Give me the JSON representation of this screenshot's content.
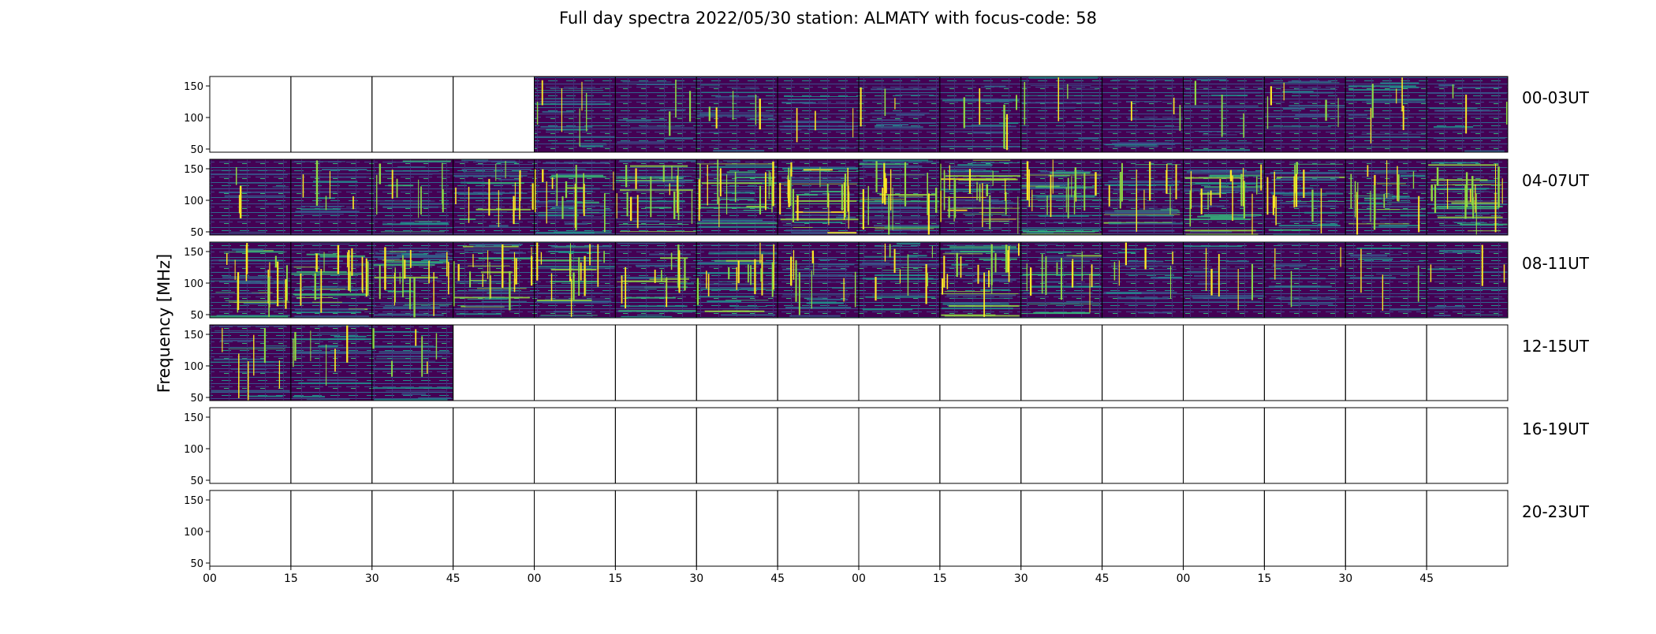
{
  "chart_data": {
    "type": "heatmap",
    "title": "Full day spectra 2022/05/30 station: ALMATY with focus-code: 58",
    "ylabel": "Frequency [MHz]",
    "xlabel": "",
    "ylim": [
      45,
      165
    ],
    "y_ticks": [
      "150",
      "100",
      "50"
    ],
    "y_tick_values": [
      150,
      100,
      50
    ],
    "x_ticks": [
      "00",
      "15",
      "30",
      "45",
      "00",
      "15",
      "30",
      "45",
      "00",
      "15",
      "30",
      "45",
      "00",
      "15",
      "30",
      "45"
    ],
    "colormap": "viridis",
    "panels_per_row": 16,
    "rows": [
      {
        "label": "00-03UT",
        "filled": [
          false,
          false,
          false,
          false,
          true,
          true,
          true,
          true,
          true,
          true,
          true,
          true,
          true,
          true,
          true,
          true
        ],
        "activity": [
          0,
          0,
          0,
          0,
          0.2,
          0.1,
          0.15,
          0.1,
          0.1,
          0.15,
          0.1,
          0.1,
          0.1,
          0.15,
          0.15,
          0.1
        ]
      },
      {
        "label": "04-07UT",
        "filled": [
          true,
          true,
          true,
          true,
          true,
          true,
          true,
          true,
          true,
          true,
          true,
          true,
          true,
          true,
          true,
          true
        ],
        "activity": [
          0.1,
          0.15,
          0.25,
          0.35,
          0.45,
          0.5,
          0.45,
          0.6,
          0.5,
          0.55,
          0.5,
          0.35,
          0.45,
          0.35,
          0.45,
          0.5
        ]
      },
      {
        "label": "08-11UT",
        "filled": [
          true,
          true,
          true,
          true,
          true,
          true,
          true,
          true,
          true,
          true,
          true,
          true,
          true,
          true,
          true,
          true
        ],
        "activity": [
          0.45,
          0.45,
          0.45,
          0.5,
          0.45,
          0.4,
          0.45,
          0.3,
          0.3,
          0.5,
          0.35,
          0.2,
          0.15,
          0.1,
          0.1,
          0.1
        ]
      },
      {
        "label": "12-15UT",
        "filled": [
          true,
          true,
          true,
          false,
          false,
          false,
          false,
          false,
          false,
          false,
          false,
          false,
          false,
          false,
          false,
          false
        ],
        "activity": [
          0.2,
          0.2,
          0.2,
          0,
          0,
          0,
          0,
          0,
          0,
          0,
          0,
          0,
          0,
          0,
          0,
          0
        ]
      },
      {
        "label": "16-19UT",
        "filled": [
          false,
          false,
          false,
          false,
          false,
          false,
          false,
          false,
          false,
          false,
          false,
          false,
          false,
          false,
          false,
          false
        ],
        "activity": [
          0,
          0,
          0,
          0,
          0,
          0,
          0,
          0,
          0,
          0,
          0,
          0,
          0,
          0,
          0,
          0
        ]
      },
      {
        "label": "20-23UT",
        "filled": [
          false,
          false,
          false,
          false,
          false,
          false,
          false,
          false,
          false,
          false,
          false,
          false,
          false,
          false,
          false,
          false
        ],
        "activity": [
          0,
          0,
          0,
          0,
          0,
          0,
          0,
          0,
          0,
          0,
          0,
          0,
          0,
          0,
          0,
          0
        ]
      }
    ]
  }
}
